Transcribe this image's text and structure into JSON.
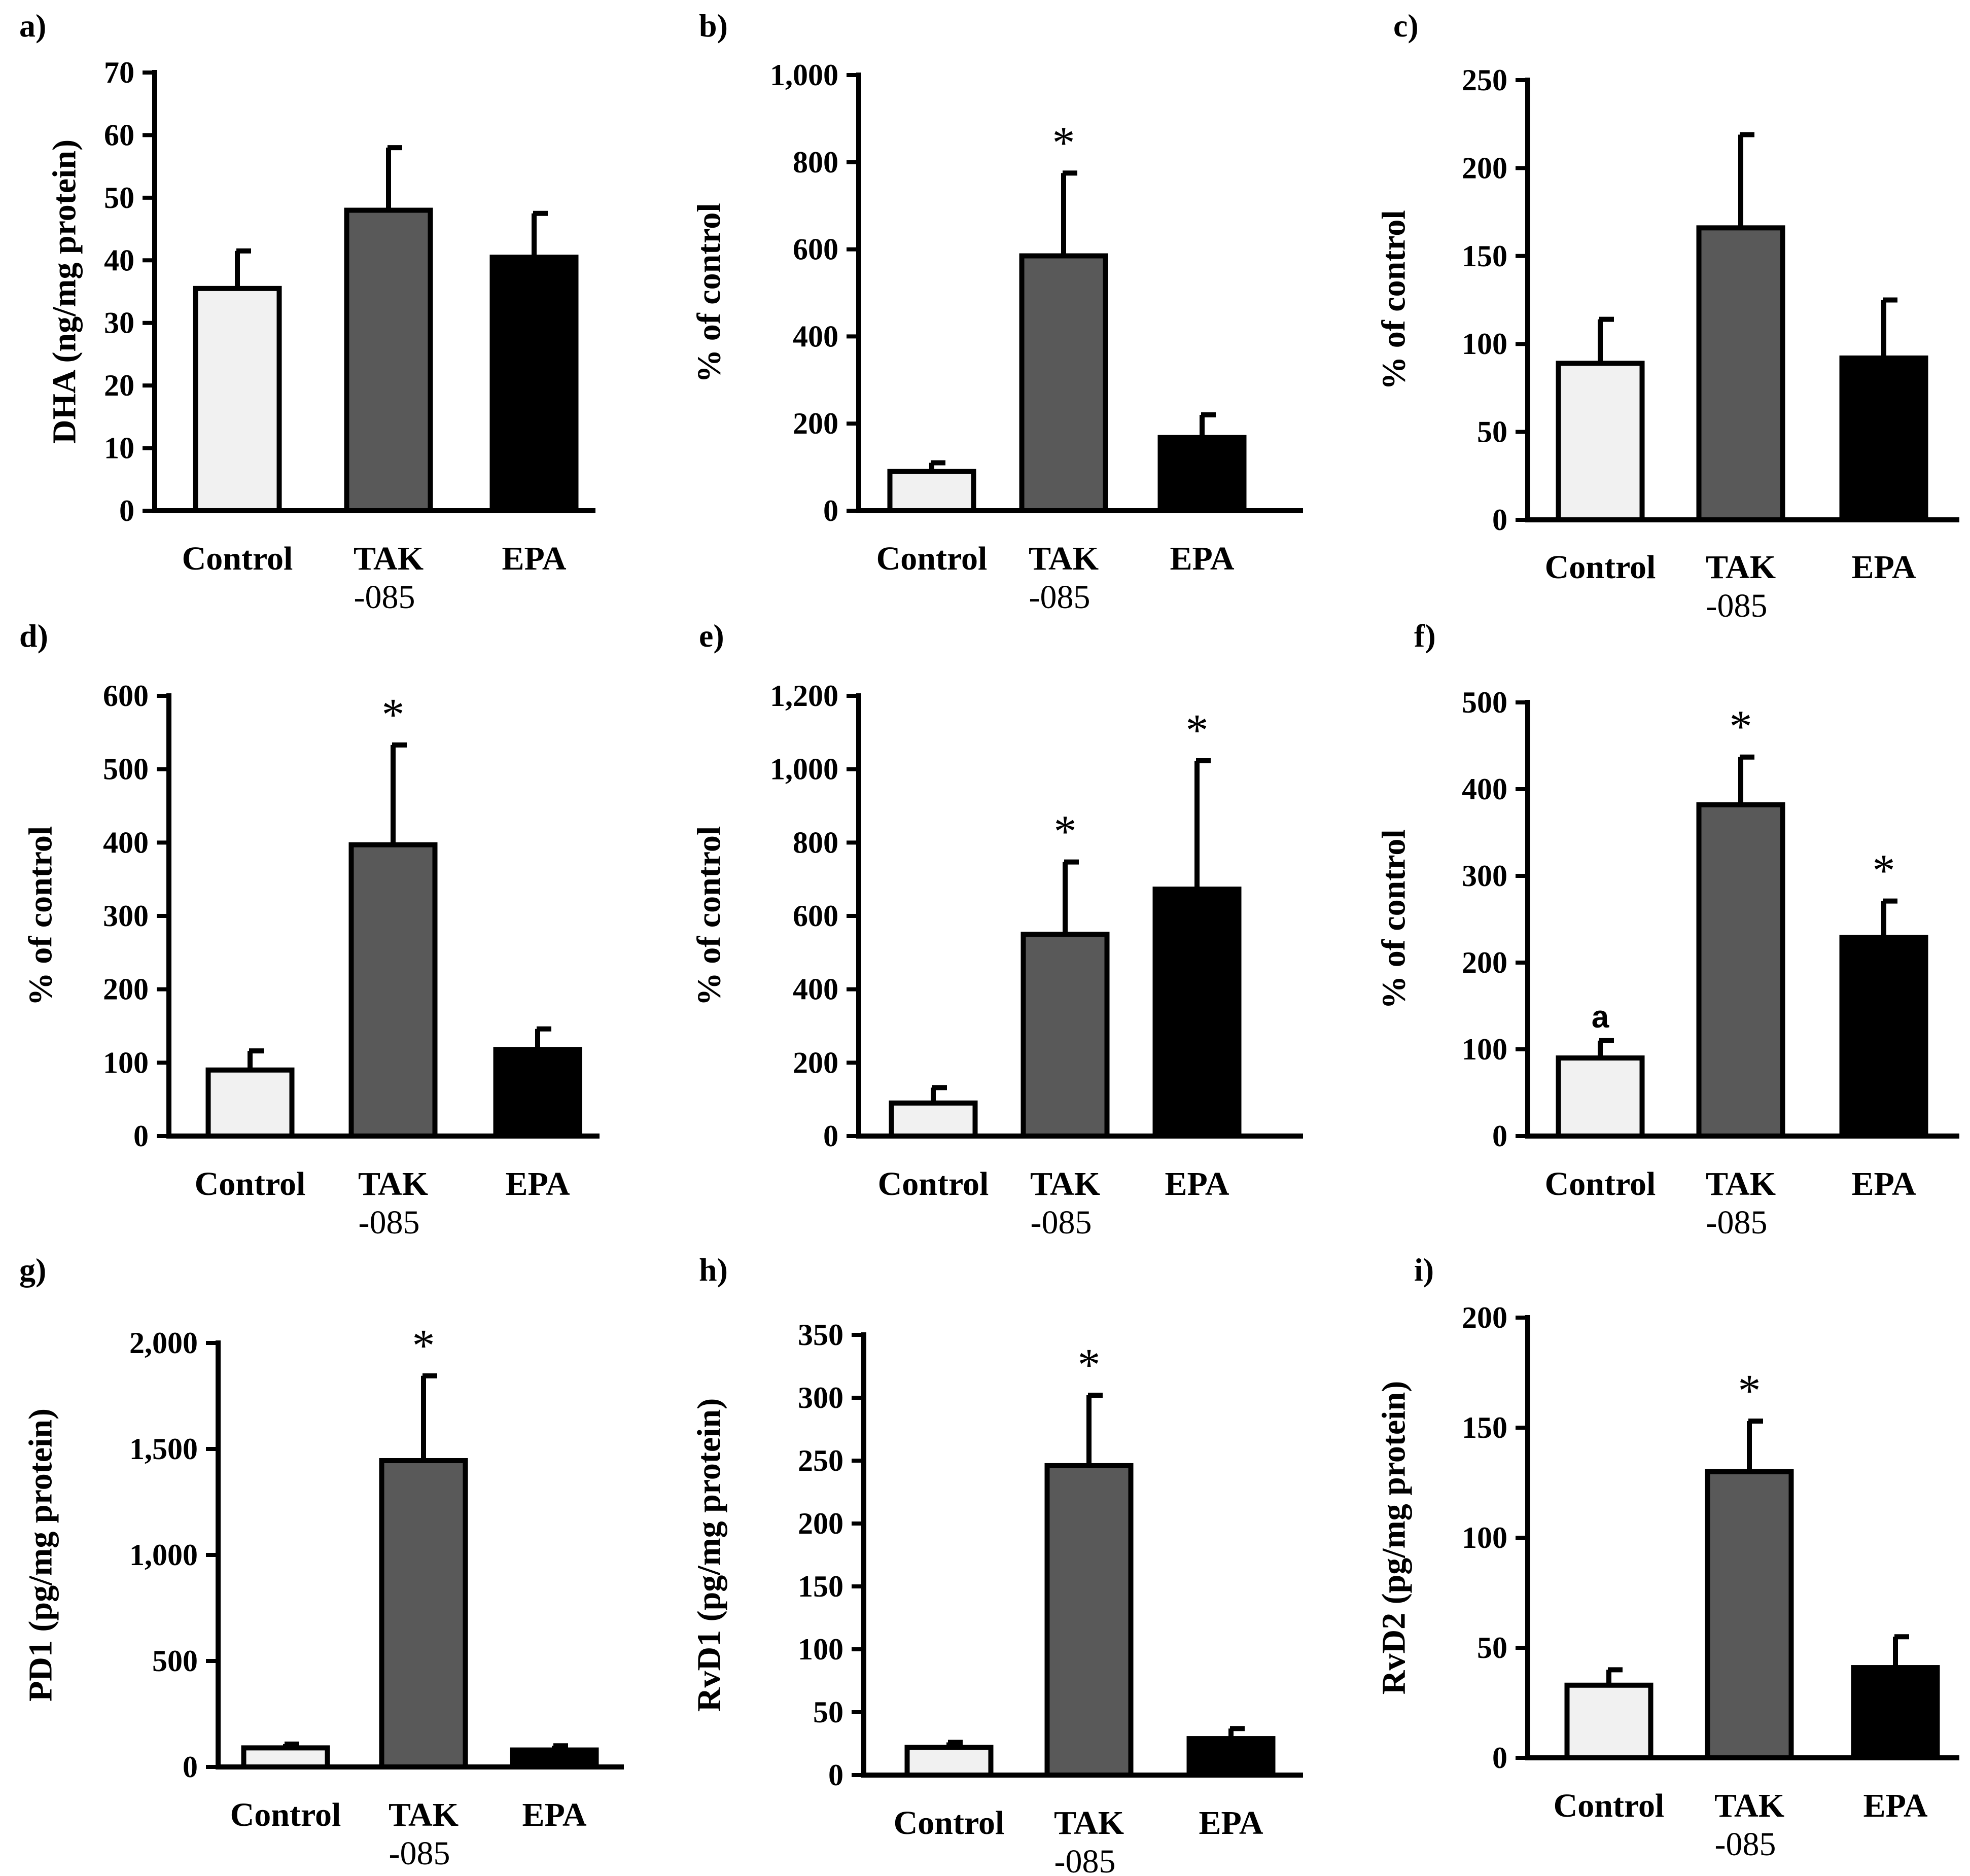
{
  "categories": [
    "Control",
    "TAK",
    "EPA"
  ],
  "category_sublabels": [
    "",
    "-085",
    ""
  ],
  "colors": {
    "Control": "#f1f1f1",
    "TAK": "#595959",
    "EPA": "#000000",
    "axis": "#000000"
  },
  "chart_data": [
    {
      "id": "a",
      "label": "a)",
      "type": "bar",
      "ylabel": "DHA (ng/mg protein)",
      "ylim": [
        0,
        70
      ],
      "ticks": [
        0,
        10,
        20,
        30,
        40,
        50,
        60,
        70
      ],
      "tick_labels": [
        "0",
        "10",
        "20",
        "30",
        "40",
        "50",
        "60",
        "70"
      ],
      "values": [
        35.5,
        48,
        40.5
      ],
      "errors": [
        6,
        10,
        7
      ],
      "annotations": [
        "",
        "",
        ""
      ]
    },
    {
      "id": "b",
      "label": "b)",
      "type": "bar",
      "ylabel": "% of control",
      "ylim": [
        0,
        1000
      ],
      "ticks": [
        0,
        200,
        400,
        600,
        800,
        1000
      ],
      "tick_labels": [
        "0",
        "200",
        "400",
        "600",
        "800",
        "1,000"
      ],
      "values": [
        90,
        585,
        168
      ],
      "errors": [
        20,
        190,
        52
      ],
      "annotations": [
        "",
        "*",
        ""
      ]
    },
    {
      "id": "c",
      "label": "c)",
      "type": "bar",
      "ylabel": "% of control",
      "ylim": [
        0,
        250
      ],
      "ticks": [
        0,
        50,
        100,
        150,
        200,
        250
      ],
      "tick_labels": [
        "0",
        "50",
        "100",
        "150",
        "200",
        "250"
      ],
      "values": [
        89,
        166,
        92
      ],
      "errors": [
        25,
        53,
        33
      ],
      "annotations": [
        "",
        "",
        ""
      ]
    },
    {
      "id": "d",
      "label": "d)",
      "type": "bar",
      "ylabel": "% of control",
      "ylim": [
        0,
        600
      ],
      "ticks": [
        0,
        100,
        200,
        300,
        400,
        500,
        600
      ],
      "tick_labels": [
        "0",
        "100",
        "200",
        "300",
        "400",
        "500",
        "600"
      ],
      "values": [
        90,
        397,
        118
      ],
      "errors": [
        26,
        136,
        28
      ],
      "annotations": [
        "",
        "*",
        ""
      ]
    },
    {
      "id": "e",
      "label": "e)",
      "type": "bar",
      "ylabel": "% of control",
      "ylim": [
        0,
        1200
      ],
      "ticks": [
        0,
        200,
        400,
        600,
        800,
        1000,
        1200
      ],
      "tick_labels": [
        "0",
        "200",
        "400",
        "600",
        "800",
        "1,000",
        "1,200"
      ],
      "values": [
        90,
        550,
        673
      ],
      "errors": [
        42,
        197,
        350
      ],
      "annotations": [
        "",
        "*",
        "*"
      ]
    },
    {
      "id": "f",
      "label": "f)",
      "type": "bar",
      "ylabel": "% of control",
      "ylim": [
        0,
        500
      ],
      "ticks": [
        0,
        100,
        200,
        300,
        400,
        500
      ],
      "tick_labels": [
        "0",
        "100",
        "200",
        "300",
        "400",
        "500"
      ],
      "values": [
        90,
        382,
        229
      ],
      "errors": [
        20,
        55,
        42
      ],
      "annotations": [
        "a",
        "*",
        "*"
      ]
    },
    {
      "id": "g",
      "label": "g)",
      "type": "bar",
      "ylabel": "PD1 (pg/mg protein)",
      "ylim": [
        0,
        2000
      ],
      "ticks": [
        0,
        500,
        1000,
        1500,
        2000
      ],
      "tick_labels": [
        "0",
        "500",
        "1,000",
        "1,500",
        "2,000"
      ],
      "values": [
        90,
        1445,
        80
      ],
      "errors": [
        18,
        400,
        20
      ],
      "annotations": [
        "",
        "*",
        ""
      ]
    },
    {
      "id": "h",
      "label": "h)",
      "type": "bar",
      "ylabel": "RvD1 (pg/mg protein)",
      "ylim": [
        0,
        350
      ],
      "ticks": [
        0,
        50,
        100,
        150,
        200,
        250,
        300,
        350
      ],
      "tick_labels": [
        "0",
        "50",
        "100",
        "150",
        "200",
        "250",
        "300",
        "350"
      ],
      "values": [
        22,
        246,
        29
      ],
      "errors": [
        4,
        56,
        8
      ],
      "annotations": [
        "",
        "*",
        ""
      ]
    },
    {
      "id": "i",
      "label": "i)",
      "type": "bar",
      "ylabel": "RvD2 (pg/mg protein)",
      "ylim": [
        0,
        200
      ],
      "ticks": [
        0,
        50,
        100,
        150,
        200
      ],
      "tick_labels": [
        "0",
        "50",
        "100",
        "150",
        "200"
      ],
      "values": [
        33,
        130,
        41
      ],
      "errors": [
        7,
        23,
        14
      ],
      "annotations": [
        "",
        "*",
        ""
      ]
    }
  ]
}
